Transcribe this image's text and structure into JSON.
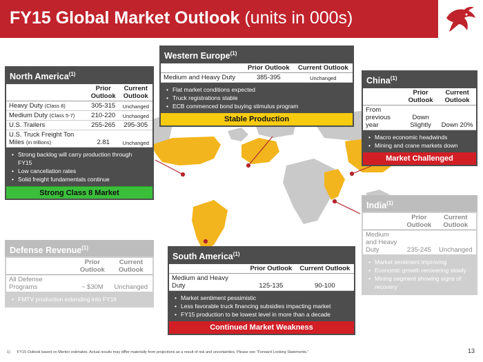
{
  "header": {
    "title_main": "FY15 Global Market Outlook",
    "title_units": "(units in 000s)",
    "accent_color": "#c0232c"
  },
  "north_america": {
    "title": "North America",
    "note_ref": "(1)",
    "col_prior": "Prior Outlook",
    "col_current": "Current Outlook",
    "rows": [
      {
        "label": "Heavy Duty",
        "qualifier": "(Class 8)",
        "prior": "305-315",
        "current": "Unchanged"
      },
      {
        "label": "Medium Duty",
        "qualifier": "(Class 5-7)",
        "prior": "210-220",
        "current": "Unchanged"
      },
      {
        "label": "U.S. Trailers",
        "qualifier": "",
        "prior": "255-265",
        "current": "295-305"
      },
      {
        "label": "U.S. Truck Freight Ton Miles",
        "qualifier": "(in trillions)",
        "prior": "2.81",
        "current": "Unchanged"
      }
    ],
    "bullets": [
      "Strong backlog will carry production through FY15",
      "Low cancellation rates",
      "Solid freight fundamentals  continue"
    ],
    "status": "Strong Class 8 Market"
  },
  "western_europe": {
    "title": "Western Europe",
    "note_ref": "(1)",
    "col_prior": "Prior Outlook",
    "col_current": "Current Outlook",
    "row": {
      "label": "Medium and Heavy Duty",
      "prior": "385-395",
      "current": "Unchanged"
    },
    "bullets": [
      "Flat market conditions expected",
      "Truck registrations stable",
      "ECB commenced bond buying stimulus program"
    ],
    "status": "Stable Production"
  },
  "china": {
    "title": "China",
    "note_ref": "(1)",
    "col_prior": "Prior Outlook",
    "col_current": "Current Outlook",
    "row": {
      "label": "From previous year",
      "prior": "Down Slightly",
      "current": "Down 20%"
    },
    "bullets": [
      "Macro economic headwinds",
      "Mining and crane  markets down"
    ],
    "status": "Market Challenged"
  },
  "india": {
    "title": "India",
    "note_ref": "(1)",
    "col_prior": "Prior Outlook",
    "col_current": "Current Outlook",
    "row": {
      "label": "Medium and Heavy Duty",
      "prior": "235-245",
      "current": "Unchanged"
    },
    "bullets": [
      "Market sentiment improving",
      "Economic growth recovering slowly",
      "Mining segment showing signs of recovery"
    ]
  },
  "defense": {
    "title": "Defense Revenue",
    "note_ref": "(1)",
    "col_prior": "Prior Outlook",
    "col_current": "Current Outlook",
    "row": {
      "label": "All Defense Programs",
      "prior": "~ $30M",
      "current": "Unchanged"
    },
    "bullets": [
      "FMTV production extending into  FY16"
    ]
  },
  "south_america": {
    "title": "South America",
    "note_ref": "(1)",
    "col_prior": "Prior Outlook",
    "col_current": "Current Outlook",
    "row": {
      "label": "Medium and Heavy Duty",
      "prior": "125-135",
      "current": "90-100"
    },
    "bullets": [
      "Market sentiment pessimistic",
      "Less favorable truck financing subsidies impacting market",
      "FY15 production to be lowest level in more than a decade"
    ],
    "status": "Continued Market Weakness"
  },
  "footer": {
    "footnote_num": "1)",
    "footnote": "FY15 Outlook based on Meritor estimates. Actual results may differ materially from projections as a result of risk and uncertainties. Please see \"Forward Looking Statements.\"",
    "page": "13"
  },
  "icons": {
    "logo": "bull-logo-icon",
    "map": "world-map"
  }
}
